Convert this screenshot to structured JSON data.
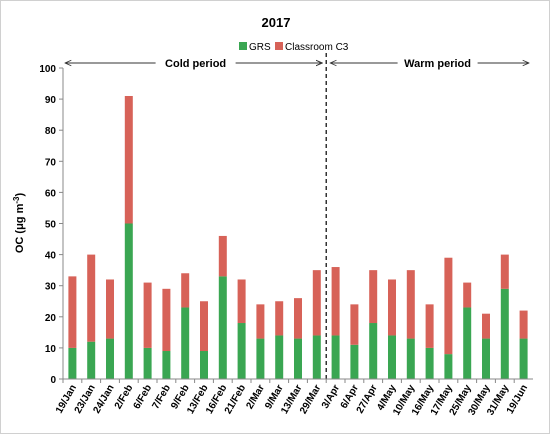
{
  "chart_data": {
    "type": "bar",
    "stacked": true,
    "title": "2017",
    "ylabel": "OC (μg m⁻³)",
    "ylabel_parts": {
      "main": "OC (μg m",
      "sup": "-3",
      "end": ")"
    },
    "xlabel": "",
    "ylim": [
      0,
      100
    ],
    "yticks": [
      0,
      10,
      20,
      30,
      40,
      50,
      60,
      70,
      80,
      90,
      100
    ],
    "grid": false,
    "legend_position": "top-center",
    "categories": [
      "19/Jan",
      "23/Jan",
      "24/Jan",
      "2/Feb",
      "6/Feb",
      "7/Feb",
      "9/Feb",
      "13/Feb",
      "16/Feb",
      "21/Feb",
      "2/Mar",
      "9/Mar",
      "13/Mar",
      "29/Mar",
      "3/Apr",
      "6/Apr",
      "27/Apr",
      "4/May",
      "10/May",
      "16/May",
      "17/May",
      "25/May",
      "30/May",
      "31/May",
      "19/Jun"
    ],
    "series": [
      {
        "name": "GRS",
        "color": "#3aa652",
        "values": [
          10,
          12,
          13,
          50,
          10,
          9,
          23,
          9,
          33,
          18,
          13,
          14,
          13,
          14,
          14,
          11,
          18,
          14,
          13,
          10,
          8,
          23,
          13,
          29,
          13
        ]
      },
      {
        "name": "Classroom C3",
        "color": "#d76258",
        "values": [
          23,
          28,
          19,
          41,
          21,
          20,
          11,
          16,
          13,
          14,
          11,
          11,
          13,
          21,
          22,
          13,
          17,
          18,
          22,
          14,
          31,
          8,
          8,
          11,
          9
        ]
      }
    ],
    "periods": [
      {
        "label": "Cold period",
        "from": "19/Jan",
        "to": "29/Mar"
      },
      {
        "label": "Warm period",
        "from": "3/Apr",
        "to": "19/Jun"
      }
    ]
  }
}
